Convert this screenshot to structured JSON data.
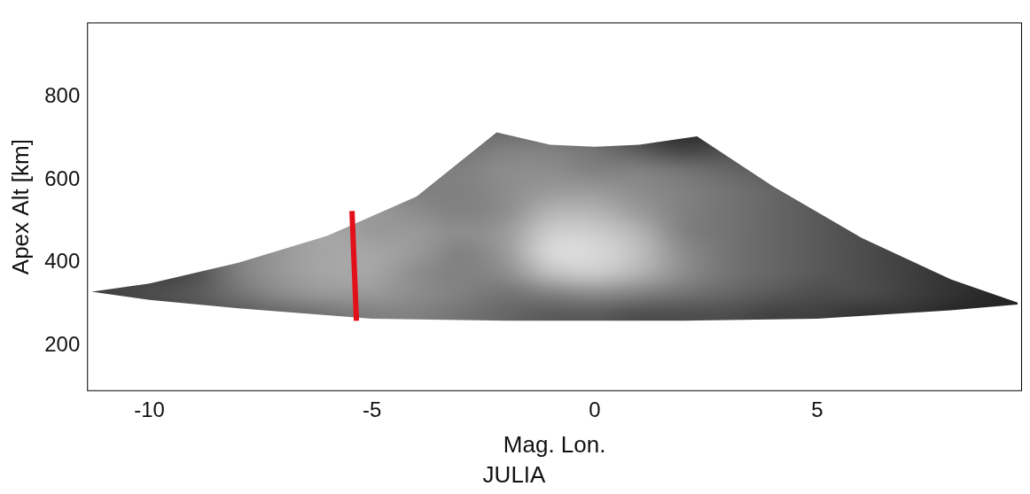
{
  "chart_data": {
    "type": "heatmap",
    "title": "JULIA",
    "x_label": "Mag. Lon.",
    "y_label": "Apex Alt [km]",
    "xlim": [
      -11.4,
      9.6
    ],
    "ylim": [
      90,
      980
    ],
    "xticks": [
      -10,
      -5,
      0,
      5
    ],
    "yticks": [
      200,
      400,
      600,
      800
    ],
    "grid": false,
    "cells": {
      "x": [
        -11,
        -10,
        -9,
        -8,
        -7,
        -6,
        -5,
        -4,
        -3,
        -2,
        -1,
        0,
        1,
        2,
        3,
        4,
        5,
        6,
        7,
        8,
        9
      ],
      "y": [
        275,
        325,
        375,
        425,
        475,
        525,
        575,
        625,
        675,
        725
      ],
      "values": [
        [
          0.2,
          0.25,
          0.3,
          0.35,
          0.4,
          0.45,
          0.5,
          0.5,
          0.45,
          0.4,
          0.35,
          0.35,
          0.3,
          0.3,
          0.3,
          0.25,
          0.25,
          0.2,
          0.2,
          0.15,
          0.15
        ],
        [
          0.25,
          0.3,
          0.35,
          0.45,
          0.55,
          0.6,
          0.6,
          0.55,
          0.5,
          0.45,
          0.5,
          0.55,
          0.5,
          0.45,
          0.4,
          0.35,
          0.3,
          0.3,
          0.25,
          0.2,
          0.15
        ],
        [
          0.3,
          0.25,
          0.3,
          0.5,
          0.6,
          0.65,
          0.65,
          0.55,
          0.5,
          0.55,
          0.75,
          0.8,
          0.7,
          0.55,
          0.45,
          0.4,
          0.35,
          0.3,
          0.25,
          0.2,
          0.2
        ],
        [
          0.3,
          0.3,
          0.35,
          0.5,
          0.6,
          0.65,
          0.65,
          0.6,
          0.5,
          0.6,
          0.85,
          0.85,
          0.75,
          0.55,
          0.45,
          0.4,
          0.35,
          0.3,
          0.25,
          0.25,
          0.2
        ],
        [
          0.3,
          0.35,
          0.4,
          0.5,
          0.6,
          0.65,
          0.6,
          0.6,
          0.55,
          0.6,
          0.8,
          0.8,
          0.7,
          0.5,
          0.45,
          0.4,
          0.35,
          0.3,
          0.3,
          0.25,
          0.2
        ],
        [
          0.35,
          0.4,
          0.45,
          0.5,
          0.55,
          0.6,
          0.6,
          0.55,
          0.5,
          0.55,
          0.7,
          0.7,
          0.6,
          0.5,
          0.45,
          0.4,
          0.35,
          0.3,
          0.3,
          0.25,
          0.2
        ],
        [
          0.4,
          0.45,
          0.5,
          0.5,
          0.5,
          0.55,
          0.55,
          0.5,
          0.5,
          0.55,
          0.6,
          0.6,
          0.55,
          0.5,
          0.45,
          0.4,
          0.35,
          0.3,
          0.3,
          0.25,
          0.2
        ],
        [
          0.45,
          0.5,
          0.5,
          0.5,
          0.5,
          0.5,
          0.5,
          0.5,
          0.5,
          0.55,
          0.55,
          0.5,
          0.5,
          0.45,
          0.4,
          0.35,
          0.3,
          0.3,
          0.25,
          0.25,
          0.2
        ],
        [
          0.45,
          0.5,
          0.5,
          0.5,
          0.5,
          0.5,
          0.5,
          0.45,
          0.45,
          0.5,
          0.5,
          0.45,
          0.35,
          0.25,
          0.3,
          0.3,
          0.3,
          0.25,
          0.25,
          0.2,
          0.2
        ],
        [
          0.45,
          0.45,
          0.45,
          0.45,
          0.45,
          0.45,
          0.45,
          0.45,
          0.4,
          0.4,
          0.4,
          0.35,
          0.2,
          0.15,
          0.2,
          0.25,
          0.25,
          0.25,
          0.2,
          0.2,
          0.2
        ]
      ]
    },
    "region": {
      "x": [
        -11.3,
        -10,
        -8,
        -6,
        -4,
        -2.2,
        -1,
        0,
        1,
        2.3,
        4,
        6,
        8,
        9.6,
        8,
        5,
        2,
        0,
        -2,
        -5,
        -8,
        -10
      ],
      "y": [
        330,
        350,
        400,
        465,
        560,
        715,
        685,
        680,
        685,
        705,
        585,
        460,
        360,
        300,
        285,
        265,
        260,
        260,
        260,
        265,
        290,
        310
      ]
    },
    "series": [
      {
        "type": "line",
        "color": "#e3101a",
        "x": [
          -5.45,
          -5.35
        ],
        "y": [
          525,
          260
        ]
      }
    ]
  }
}
